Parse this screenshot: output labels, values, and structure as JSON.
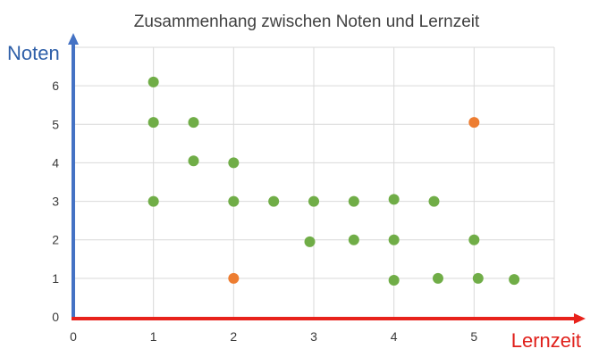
{
  "chart_data": {
    "type": "scatter",
    "title": "Zusammenhang zwischen Noten und Lernzeit",
    "xlabel": "Lernzeit",
    "ylabel": "Noten",
    "xlim": [
      0,
      6
    ],
    "ylim": [
      0,
      7
    ],
    "x_ticks": [
      "0",
      "1",
      "2",
      "3",
      "4",
      "5"
    ],
    "y_ticks": [
      "0",
      "1",
      "2",
      "3",
      "4",
      "5",
      "6"
    ],
    "grid": true,
    "series": [
      {
        "color": "#70ad47",
        "points": [
          {
            "x": 1,
            "y": 6.1
          },
          {
            "x": 1,
            "y": 5.05
          },
          {
            "x": 1.5,
            "y": 5.05
          },
          {
            "x": 1.5,
            "y": 4.05
          },
          {
            "x": 2,
            "y": 4.0
          },
          {
            "x": 1,
            "y": 3.0
          },
          {
            "x": 2,
            "y": 3.0
          },
          {
            "x": 2.5,
            "y": 3.0
          },
          {
            "x": 3,
            "y": 3.0
          },
          {
            "x": 3.5,
            "y": 3.0
          },
          {
            "x": 4,
            "y": 3.05
          },
          {
            "x": 4.5,
            "y": 3.0
          },
          {
            "x": 2.95,
            "y": 1.95
          },
          {
            "x": 3.5,
            "y": 2.0
          },
          {
            "x": 4,
            "y": 2.0
          },
          {
            "x": 5,
            "y": 2.0
          },
          {
            "x": 4,
            "y": 0.95
          },
          {
            "x": 4.55,
            "y": 1.0
          },
          {
            "x": 5.05,
            "y": 1.0
          },
          {
            "x": 5.5,
            "y": 0.97
          }
        ]
      },
      {
        "color": "#ed7d31",
        "points": [
          {
            "x": 2,
            "y": 1.0
          },
          {
            "x": 5,
            "y": 5.05
          }
        ]
      }
    ],
    "colors": {
      "grid": "#d9d9d9",
      "y_axis": "#4472c4",
      "x_axis": "#e8221b"
    }
  }
}
